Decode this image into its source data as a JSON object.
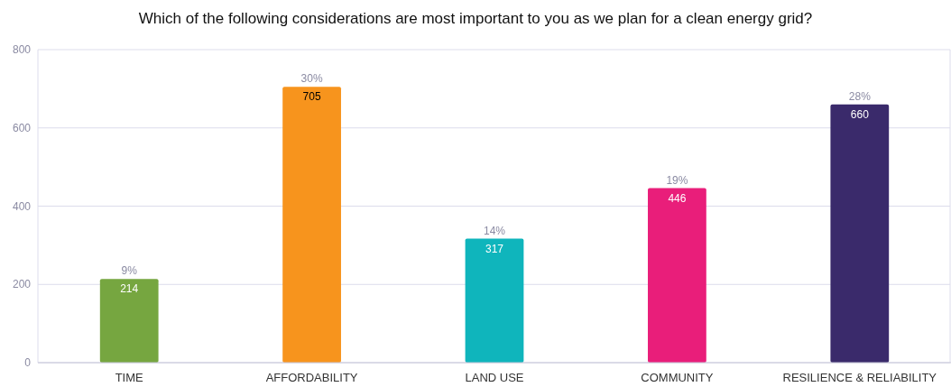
{
  "chart_data": {
    "type": "bar",
    "title": "Which of the following considerations are most important to you as we plan for a clean energy grid?",
    "categories": [
      "TIME",
      "AFFORDABILITY",
      "LAND USE",
      "COMMUNITY",
      "RESILIENCE & RELIABILITY"
    ],
    "values": [
      214,
      705,
      317,
      446,
      660
    ],
    "colors": [
      "#76a640",
      "#f7941d",
      "#0fb5bc",
      "#e91e7a",
      "#3a2a6b"
    ],
    "data_labels": true,
    "annotations": [
      {
        "text": "9%",
        "x": "TIME",
        "y": 214
      },
      {
        "text": "30%",
        "x": "AFFORDABILITY",
        "y": 705
      },
      {
        "text": "14%",
        "x": "LAND USE",
        "y": 317
      },
      {
        "text": "19%",
        "x": "COMMUNITY",
        "y": 446
      },
      {
        "text": "28%",
        "x": "RESILIENCE & RELIABILITY",
        "y": 660
      }
    ],
    "ylim": [
      0,
      800
    ],
    "yticks": [
      0,
      200,
      400,
      600,
      800
    ],
    "grid": true
  }
}
